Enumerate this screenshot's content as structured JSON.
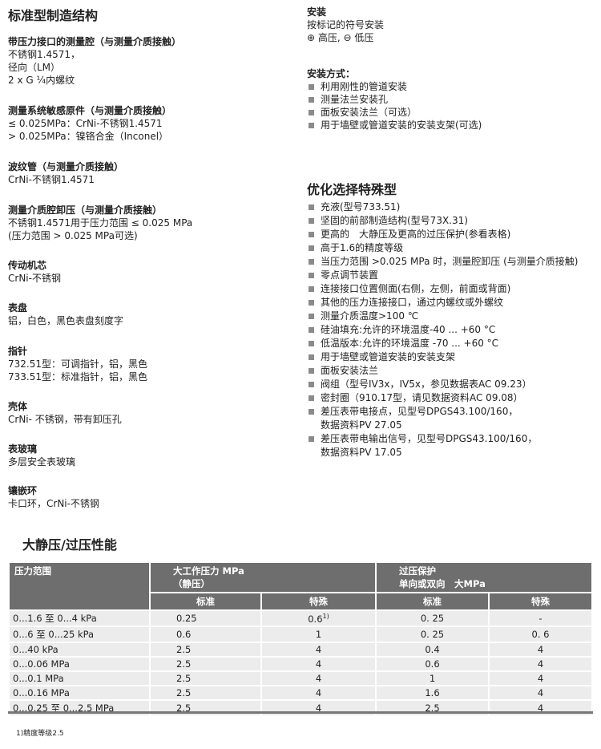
{
  "left": {
    "title": "标准型制造结构",
    "sections": [
      {
        "heading": "带压力接口的测量腔（与测量介质接触）",
        "lines": [
          "不锈钢1.4571，",
          "径向（LM）",
          "2 x G ¼内螺纹"
        ]
      },
      {
        "heading": "测量系统敏感原件（与测量介质接触）",
        "lines": [
          "≤ 0.025MPa：CrNi-不锈钢1.4571",
          "> 0.025MPa：镍铬合金（Inconel）"
        ]
      },
      {
        "heading": "波纹管（与测量介质接触）",
        "lines": [
          "CrNi-不锈钢1.4571"
        ]
      },
      {
        "heading": "测量介质腔卸压（与测量介质接触）",
        "lines": [
          "不锈钢1.4571用于压力范围 ≤ 0.025 MPa",
          "(压力范围 > 0.025 MPa可选)"
        ]
      },
      {
        "heading": "传动机芯",
        "lines": [
          "CrNi-不锈钢"
        ]
      },
      {
        "heading": "表盘",
        "lines": [
          "铝，白色，黑色表盘刻度字"
        ]
      },
      {
        "heading": "指针",
        "lines": [
          "732.51型：可调指针，铝，黑色",
          "733.51型：标准指针，铝，黑色"
        ]
      },
      {
        "heading": "壳体",
        "lines": [
          "CrNi- 不锈钢，带有卸压孔"
        ]
      },
      {
        "heading": "表玻璃",
        "lines": [
          "多层安全表玻璃"
        ]
      },
      {
        "heading": "镶嵌环",
        "lines": [
          "卡口环，CrNi-不锈钢"
        ]
      }
    ]
  },
  "right": {
    "install": {
      "heading": "安装",
      "lines": [
        "按标记的符号安装",
        "⊕ 高压, ⊖ 低压"
      ]
    },
    "install_methods": {
      "heading": "安装方式：",
      "items": [
        "利用刚性的管道安装",
        "测量法兰安装孔",
        "面板安装法兰（可选）",
        "用于墙壁或管道安装的安装支架(可选)"
      ]
    },
    "options": {
      "title": "优化选择特殊型",
      "items": [
        [
          "充液(型号733.51)"
        ],
        [
          "坚固的前部制造结构(型号73X.31)"
        ],
        [
          "更高的　大静压及更高的过压保护(参看表格)"
        ],
        [
          "高于1.6的精度等级"
        ],
        [
          "当压力范围 >0.025 MPa 时，测量腔卸压 (与测量介质接触)"
        ],
        [
          "零点调节装置"
        ],
        [
          "连接接口位置侧面(右侧，左侧，前面或背面)"
        ],
        [
          "其他的压力连接接口，通过内螺纹或外螺纹"
        ],
        [
          "测量介质温度>100 ℃"
        ],
        [
          "硅油填充:允许的环境温度-40 ... +60 °C"
        ],
        [
          "低温版本:允许的环境温度 -70 ... +60 °C"
        ],
        [
          "用于墙壁或管道安装的安装支架"
        ],
        [
          "面板安装法兰"
        ],
        [
          "阀组（型号IV3x，IV5x，参见数据表AC 09.23）"
        ],
        [
          "密封圈（910.17型，请见数据资料AC 09.08）"
        ],
        [
          "差压表带电接点，见型号DPGS43.100/160，",
          "数据资料PV 27.05"
        ],
        [
          "差压表带电输出信号，见型号DPGS43.100/160，",
          "数据资料PV 17.05"
        ]
      ]
    }
  },
  "table_section": {
    "title": "大静压/过压性能",
    "headers": {
      "range": "压力范围",
      "working_l1": "大工作压力 MPa",
      "working_l2": "（静压）",
      "overload_l1": "过压保护",
      "overload_l2": "单向或双向　大MPa",
      "standard": "标准",
      "special": "特殊"
    },
    "rows": [
      {
        "range": "0...1.6 至 0...4 kPa",
        "w_std": "0.25",
        "w_spec": "0.6",
        "w_spec_note": "1)",
        "o_std": "0. 25",
        "o_spec": "-"
      },
      {
        "range": "0...6 至 0...25 kPa",
        "w_std": "0.6",
        "w_spec": "1",
        "w_spec_note": "",
        "o_std": "0. 25",
        "o_spec": "0. 6"
      },
      {
        "range": "0...40 kPa",
        "w_std": "2.5",
        "w_spec": "4",
        "w_spec_note": "",
        "o_std": "0.4",
        "o_spec": "4"
      },
      {
        "range": "0...0.06 MPa",
        "w_std": "2.5",
        "w_spec": "4",
        "w_spec_note": "",
        "o_std": "0.6",
        "o_spec": "4"
      },
      {
        "range": "0...0.1 MPa",
        "w_std": "2.5",
        "w_spec": "4",
        "w_spec_note": "",
        "o_std": "1",
        "o_spec": "4"
      },
      {
        "range": "0...0.16 MPa",
        "w_std": "2.5",
        "w_spec": "4",
        "w_spec_note": "",
        "o_std": "1.6",
        "o_spec": "4"
      },
      {
        "range": "0...0.25 至 0...2.5 MPa",
        "w_std": "2.5",
        "w_spec": "4",
        "w_spec_note": "",
        "o_std": "2.5",
        "o_spec": "4"
      }
    ],
    "footnote": "1)精度等级2.5"
  }
}
